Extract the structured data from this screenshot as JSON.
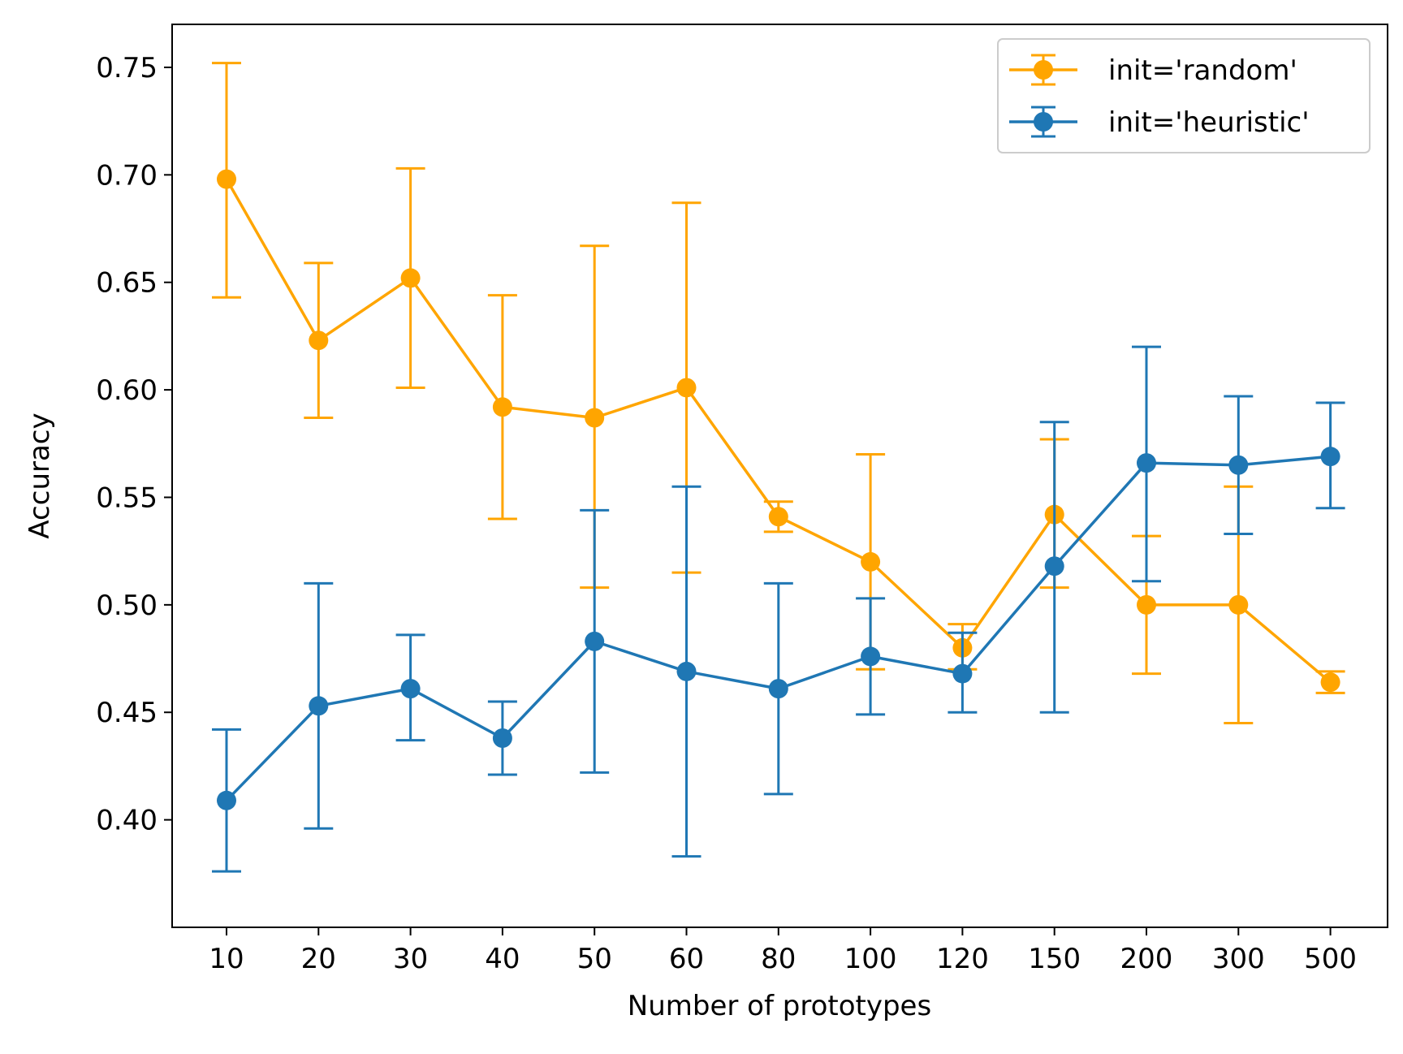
{
  "chart_data": {
    "type": "line",
    "title": "",
    "xlabel": "Number of prototypes",
    "ylabel": "Accuracy",
    "categories": [
      "10",
      "20",
      "30",
      "40",
      "50",
      "60",
      "80",
      "100",
      "120",
      "150",
      "200",
      "300",
      "500"
    ],
    "ylim": [
      0.35,
      0.77
    ],
    "yticks": [
      "0.40",
      "0.45",
      "0.50",
      "0.55",
      "0.60",
      "0.65",
      "0.70",
      "0.75"
    ],
    "grid": false,
    "legend_position": "top-right",
    "series": [
      {
        "name": "init='random'",
        "color": "#FFA500",
        "values": [
          0.698,
          0.623,
          0.652,
          0.592,
          0.587,
          0.601,
          0.541,
          0.52,
          0.48,
          0.542,
          0.5,
          0.5,
          0.464
        ],
        "err_low": [
          0.643,
          0.587,
          0.601,
          0.54,
          0.508,
          0.515,
          0.534,
          0.47,
          0.47,
          0.508,
          0.468,
          0.445,
          0.459
        ],
        "err_high": [
          0.752,
          0.659,
          0.703,
          0.644,
          0.667,
          0.687,
          0.548,
          0.57,
          0.491,
          0.577,
          0.532,
          0.555,
          0.469
        ]
      },
      {
        "name": "init='heuristic'",
        "color": "#1F77B4",
        "values": [
          0.409,
          0.453,
          0.461,
          0.438,
          0.483,
          0.469,
          0.461,
          0.476,
          0.468,
          0.518,
          0.566,
          0.565,
          0.569
        ],
        "err_low": [
          0.376,
          0.396,
          0.437,
          0.421,
          0.422,
          0.383,
          0.412,
          0.449,
          0.45,
          0.45,
          0.511,
          0.533,
          0.545
        ],
        "err_high": [
          0.442,
          0.51,
          0.486,
          0.455,
          0.544,
          0.555,
          0.51,
          0.503,
          0.487,
          0.585,
          0.62,
          0.597,
          0.594
        ]
      }
    ]
  }
}
